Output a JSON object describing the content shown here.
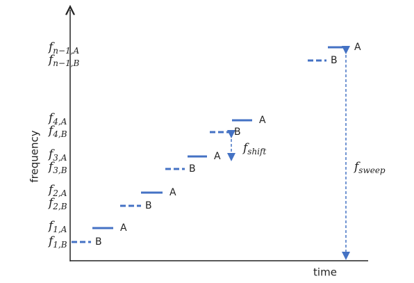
{
  "axes": {
    "x_label": "time",
    "y_label": "frequency"
  },
  "y_labels": [
    {
      "base": "f",
      "sub": "n−1,A"
    },
    {
      "base": "f",
      "sub": "n−1,B"
    },
    {
      "base": "f",
      "sub": "4,A"
    },
    {
      "base": "f",
      "sub": "4,B"
    },
    {
      "base": "f",
      "sub": "3,A"
    },
    {
      "base": "f",
      "sub": "3,B"
    },
    {
      "base": "f",
      "sub": "2,A"
    },
    {
      "base": "f",
      "sub": "2,B"
    },
    {
      "base": "f",
      "sub": "1,A"
    },
    {
      "base": "f",
      "sub": "1,B"
    }
  ],
  "segments": [
    {
      "label": "B"
    },
    {
      "label": "A"
    },
    {
      "label": "B"
    },
    {
      "label": "A"
    },
    {
      "label": "B"
    },
    {
      "label": "A"
    },
    {
      "label": "B"
    },
    {
      "label": "A"
    },
    {
      "label": "B"
    },
    {
      "label": "A"
    }
  ],
  "annotations": [
    {
      "base": "f",
      "sub": "shift"
    },
    {
      "base": "f",
      "sub": "sweep"
    }
  ]
}
